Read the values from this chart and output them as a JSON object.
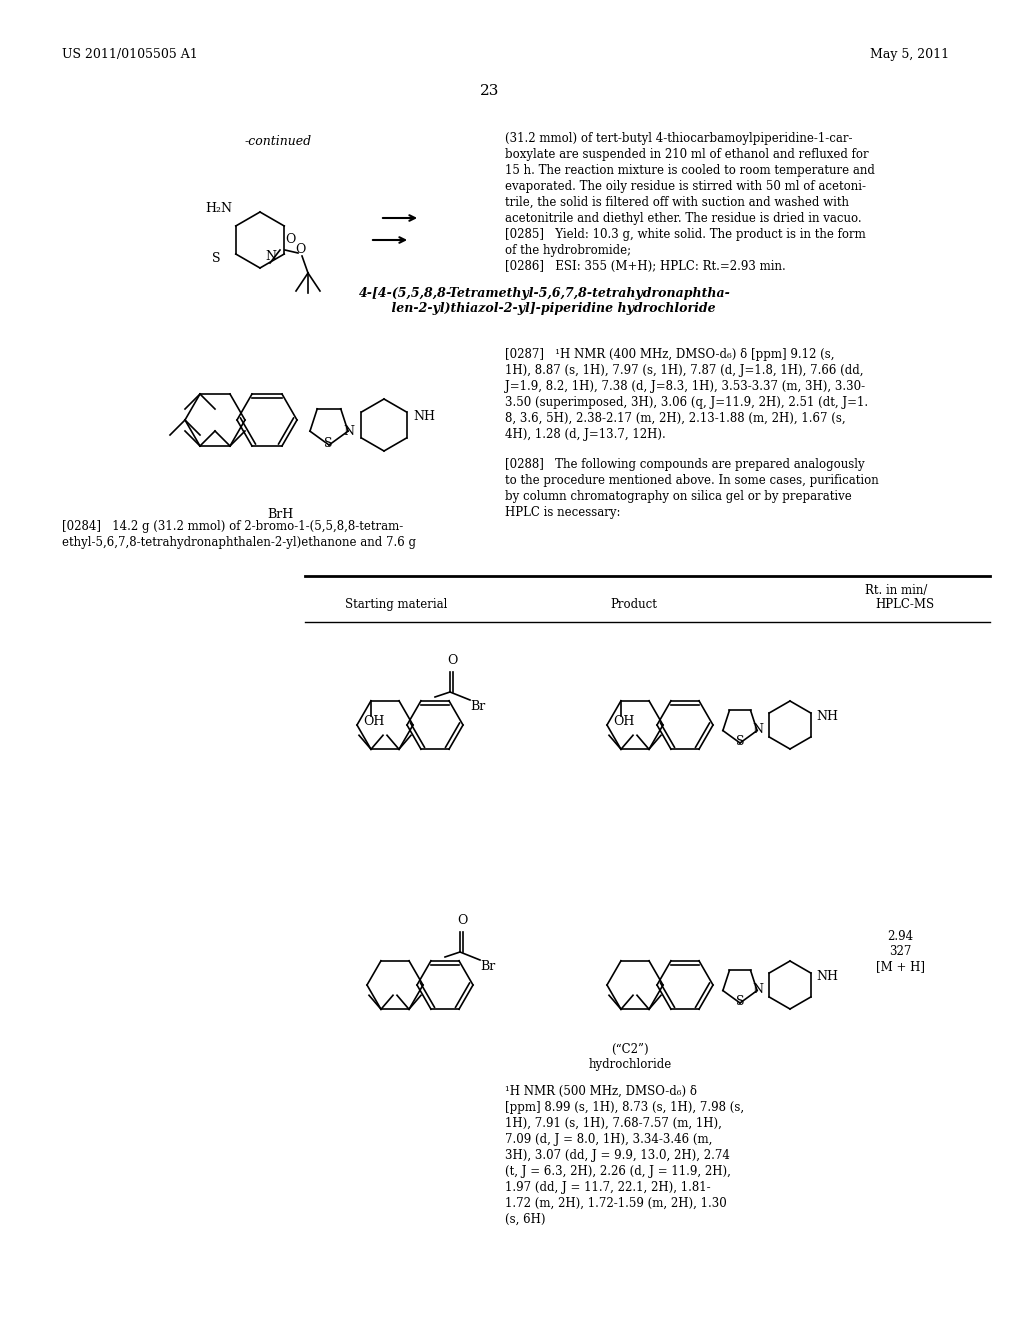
{
  "page_number": "23",
  "patent_number": "US 2011/0105505 A1",
  "patent_date": "May 5, 2011",
  "background_color": "#ffffff",
  "text_color": "#000000",
  "header_text_left": "US 2011/0105505 A1",
  "header_text_right": "May 5, 2011",
  "continued_label": "-continued",
  "right_col_text": [
    "(31.2 mmol) of tert-butyl 4-thiocarbamoylpiperidine-1-car-",
    "boxylate are suspended in 210 ml of ethanol and refluxed for",
    "15 h. The reaction mixture is cooled to room temperature and",
    "evaporated. The oily residue is stirred with 50 ml of acetoni-",
    "trile, the solid is filtered off with suction and washed with",
    "acetonitrile and diethyl ether. The residue is dried in vacuo.",
    "[0285]   Yield: 10.3 g, white solid. The product is in the form",
    "of the hydrobromide;",
    "[0286]   ESI: 355 (M+H); HPLC: Rt.=2.93 min."
  ],
  "compound_title": "4-[4-(5,5,8,8-Tetramethyl-5,6,7,8-tetrahydronaphtha-\n    len-2-yl)thiazol-2-yl]-piperidine hydrochloride",
  "nmr_text_0287": "[0287]   ¹H NMR (400 MHz, DMSO-d₆) δ [ppm] 9.12 (s, 1H), 8.87 (s, 1H), 7.97 (s, 1H), 7.87 (d, J=1.8, 1H), 7.66 (dd, J=1.9, 8.2, 1H), 7.38 (d, J=8.3, 1H), 3.53-3.37 (m, 3H), 3.30-3.50 (superimposed, 3H), 3.06 (q, J=11.9, 2H), 2.51 (dt, J=1.8, 3.6, 5H), 2.38-2.17 (m, 2H), 2.13-1.88 (m, 2H), 1.67 (s, 4H), 1.28 (d, J=13.7, 12H).",
  "text_0284_left": "[0284]   14.2 g (31.2 mmol) of 2-bromo-1-(5,5,8,8-tetram-\nethyl-5,6,7,8-tetrahydronaphthalen-2-yl)ethanone and 7.6 g",
  "text_0288": "[0288]   The following compounds are prepared analogously to the procedure mentioned above. In some cases, purification by column chromatography on silica gel or by preparative HPLC is necessary:",
  "table_headers": [
    "Starting material",
    "Product",
    "Rt. in min/\nHPLC-MS"
  ],
  "nmr_c2_text": "(“C2”)\nhydrochloride",
  "nmr_c2_data": "¹H NMR (500 MHz, DMSO-d₆) δ\n[ppm] 8.99 (s, 1H), 8.73 (s, 1H), 7.98 (s,\n1H), 7.91 (s, 1H), 7.68-7.57 (m, 1H),\n7.09 (d, J = 8.0, 1H), 3.34-3.46 (m,\n3H), 3.07 (dd, J = 9.9, 13.0, 2H), 2.74\n(t, J = 6.3, 2H), 2.26 (d, J = 11.9, 2H),\n1.97 (dd, J = 11.7, 22.1, 2H), 1.81-\n1.72 (m, 2H), 1.72-1.59 (m, 2H), 1.30\n(s, 6H)",
  "rt_values": "2.94\n327\n[M + H]"
}
